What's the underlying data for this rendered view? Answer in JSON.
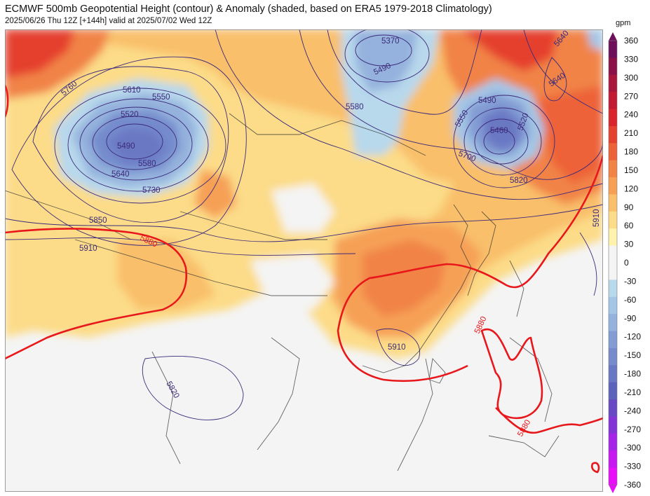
{
  "header": {
    "title": "ECMWF 500mb Geopotential Height (contour) & Anomaly (shaded, based on ERA5 1979-2018 Climatology)",
    "subtitle": "2025/06/26 Thu 12Z [+144h] valid at 2025/07/02 Wed 12Z"
  },
  "colorbar": {
    "unit": "gpm",
    "ticks": [
      "360",
      "330",
      "300",
      "270",
      "240",
      "210",
      "180",
      "150",
      "120",
      "90",
      "60",
      "30",
      "0",
      "-30",
      "-60",
      "-90",
      "-120",
      "-150",
      "-180",
      "-210",
      "-240",
      "-270",
      "-300",
      "-330",
      "-360"
    ],
    "colors": [
      "#6d0f5a",
      "#8a1147",
      "#a8163c",
      "#c21a33",
      "#d8242b",
      "#e5412e",
      "#ed6239",
      "#f18347",
      "#f6a057",
      "#f9bf6b",
      "#fcdc88",
      "#fff2ad",
      "#f4f4f4",
      "#f4f4f4",
      "#b8d8ec",
      "#a4c6e6",
      "#94b2dd",
      "#839dd4",
      "#758bcc",
      "#6a78c4",
      "#5b63bb",
      "#6749c4",
      "#8433d8",
      "#a624e8",
      "#c818f2",
      "#e80ff9"
    ]
  },
  "contour_labels": [
    {
      "text": "5760"
    },
    {
      "text": "5610"
    },
    {
      "text": "5550"
    },
    {
      "text": "5520"
    },
    {
      "text": "5490"
    },
    {
      "text": "5580"
    },
    {
      "text": "5640"
    },
    {
      "text": "5730"
    },
    {
      "text": "5850"
    },
    {
      "text": "5910"
    },
    {
      "text": "5880"
    },
    {
      "text": "5370"
    },
    {
      "text": "5490"
    },
    {
      "text": "5580"
    },
    {
      "text": "5490"
    },
    {
      "text": "5550"
    },
    {
      "text": "5460"
    },
    {
      "text": "5520"
    },
    {
      "text": "5700"
    },
    {
      "text": "5640"
    },
    {
      "text": "5640"
    },
    {
      "text": "5820"
    },
    {
      "text": "5910"
    },
    {
      "text": "5910"
    },
    {
      "text": "5880"
    },
    {
      "text": "5880"
    },
    {
      "text": "5820"
    }
  ]
}
